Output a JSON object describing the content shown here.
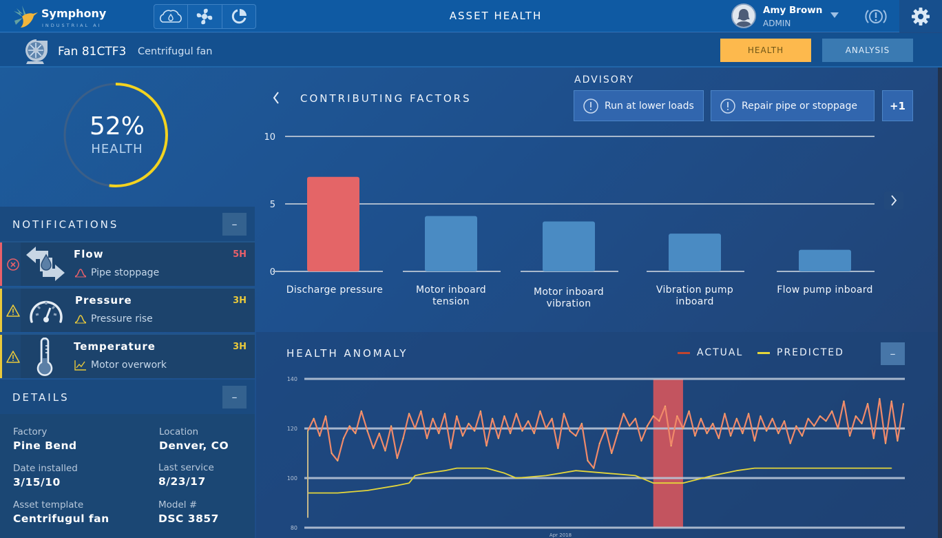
{
  "app": {
    "brand": "Symphony",
    "brand_sub": "INDUSTRIAL AI",
    "title": "ASSET HEALTH",
    "toolbar_icons": [
      "gauges-icon",
      "fan-icon",
      "pie-chart-icon"
    ]
  },
  "user": {
    "name": "Amy Brown",
    "role": "ADMIN"
  },
  "asset": {
    "name": "Fan 81CTF3",
    "type": "Centrifugul fan",
    "tabs": [
      {
        "label": "HEALTH",
        "active": true
      },
      {
        "label": "ANALYSIS",
        "active": false
      }
    ]
  },
  "health": {
    "value_label": "52%",
    "percent": 52,
    "label": "HEALTH"
  },
  "notifications": {
    "title": "NOTIFICATIONS",
    "collapse_label": "–",
    "items": [
      {
        "title": "Flow",
        "subtitle": "Pipe stoppage",
        "time": "5H",
        "severity": "critical",
        "color": "#e8606a"
      },
      {
        "title": "Pressure",
        "subtitle": "Pressure rise",
        "time": "3H",
        "severity": "warning",
        "color": "#e9c93b"
      },
      {
        "title": "Temperature",
        "subtitle": "Motor overwork",
        "time": "3H",
        "severity": "warning",
        "color": "#e9c93b"
      }
    ]
  },
  "details": {
    "title": "DETAILS",
    "collapse_label": "–",
    "fields": [
      {
        "label": "Factory",
        "value": "Pine Bend"
      },
      {
        "label": "Location",
        "value": "Denver, CO"
      },
      {
        "label": "Date installed",
        "value": "3/15/10"
      },
      {
        "label": "Last service",
        "value": "8/23/17"
      },
      {
        "label": "Asset template",
        "value": "Centrifugul fan"
      },
      {
        "label": "Model #",
        "value": "DSC 3857"
      }
    ]
  },
  "contributing": {
    "title": "CONTRIBUTING FACTORS",
    "advisory_title": "ADVISORY",
    "advisories": [
      "Run at lower loads",
      "Repair pipe or stoppage"
    ],
    "advisory_more": "+1"
  },
  "anomaly": {
    "title": "HEALTH ANOMALY",
    "legend_actual": "ACTUAL",
    "legend_predicted": "PREDICTED",
    "collapse_label": "–"
  },
  "colors": {
    "accent_yellow": "#fdb94d",
    "critical": "#e8606a",
    "warning": "#e9c93b",
    "bar_normal": "#4d8dc4",
    "actual_line": "#f08a6a",
    "predicted_line": "#e4d63a"
  },
  "chart_data": [
    {
      "type": "bar",
      "title": "CONTRIBUTING FACTORS",
      "categories": [
        "Discharge pressure",
        "Motor inboard tension",
        "Motor inboard vibration",
        "Vibration pump inboard",
        "Flow pump inboard"
      ],
      "category_lines": [
        [
          "Discharge pressure"
        ],
        [
          "Motor inboard",
          "tension"
        ],
        [
          "Motor inboard",
          "vibration"
        ],
        [
          "Vibration pump",
          "inboard"
        ],
        [
          "Flow pump inboard"
        ]
      ],
      "values": [
        7.0,
        4.1,
        3.7,
        2.8,
        1.6
      ],
      "highlight_index": 0,
      "yticks": [
        0,
        5,
        10
      ],
      "ylim": [
        0,
        10
      ],
      "xlabel": "",
      "ylabel": ""
    },
    {
      "type": "line",
      "title": "HEALTH ANOMALY",
      "yticks": [
        80,
        100,
        120,
        140
      ],
      "ylim": [
        80,
        140
      ],
      "xlabel": "Apr 2018",
      "x_range": [
        0,
        100
      ],
      "anomaly_window": [
        58,
        63
      ],
      "series": [
        {
          "name": "ACTUAL",
          "x": [
            0,
            1,
            2,
            3,
            4,
            5,
            6,
            7,
            8,
            9,
            10,
            11,
            12,
            13,
            14,
            15,
            16,
            17,
            18,
            19,
            20,
            21,
            22,
            23,
            24,
            25,
            26,
            27,
            28,
            29,
            30,
            31,
            32,
            33,
            34,
            35,
            36,
            37,
            38,
            39,
            40,
            41,
            42,
            43,
            44,
            45,
            46,
            47,
            48,
            49,
            50,
            51,
            52,
            53,
            54,
            55,
            56,
            57,
            58,
            59,
            60,
            61,
            62,
            63,
            64,
            65,
            66,
            67,
            68,
            69,
            70,
            71,
            72,
            73,
            74,
            75,
            76,
            77,
            78,
            79,
            80,
            81,
            82,
            83,
            84,
            85,
            86,
            87,
            88,
            89,
            90,
            91,
            92,
            93,
            94,
            95,
            96,
            97,
            98,
            99,
            100
          ],
          "values": [
            119,
            124,
            117,
            125,
            110,
            107,
            116,
            121,
            118,
            127,
            119,
            112,
            118,
            111,
            121,
            108,
            116,
            126,
            120,
            127,
            116,
            124,
            118,
            126,
            112,
            125,
            117,
            122,
            119,
            127,
            113,
            124,
            116,
            125,
            118,
            126,
            119,
            123,
            118,
            127,
            120,
            124,
            112,
            126,
            119,
            117,
            122,
            107,
            104,
            114,
            120,
            110,
            118,
            126,
            121,
            124,
            115,
            121,
            125,
            123,
            129,
            113,
            125,
            120,
            127,
            117,
            124,
            118,
            122,
            116,
            126,
            117,
            124,
            118,
            126,
            115,
            125,
            119,
            124,
            118,
            123,
            114,
            121,
            117,
            124,
            121,
            125,
            123,
            127,
            120,
            131,
            117,
            125,
            122,
            130,
            116,
            132,
            114,
            131,
            115,
            130
          ]
        },
        {
          "name": "PREDICTED",
          "x": [
            0,
            5,
            10,
            15,
            17,
            18,
            20,
            23,
            25,
            30,
            33,
            35,
            40,
            45,
            50,
            55,
            58,
            60,
            63,
            68,
            72,
            75,
            80,
            85,
            90,
            95,
            98
          ],
          "values": [
            94,
            94,
            95,
            97,
            98,
            101,
            102,
            103,
            104,
            104,
            102,
            100,
            101,
            103,
            102,
            101,
            98,
            98,
            98,
            101,
            103,
            104,
            104,
            104,
            104,
            104,
            104
          ]
        }
      ]
    }
  ]
}
